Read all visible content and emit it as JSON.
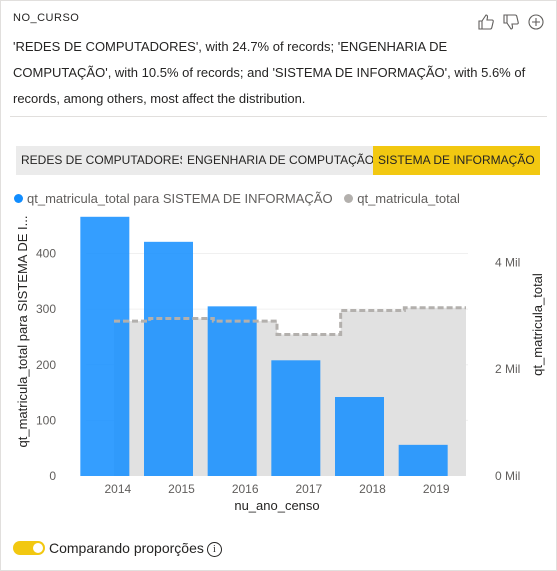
{
  "header": {
    "label": "NO_CURSO"
  },
  "icons": {
    "like": "thumbs-up-icon",
    "dislike": "thumbs-down-icon",
    "add": "plus-circle-icon"
  },
  "summary": {
    "text": "'REDES DE COMPUTADORES', with 24.7% of records; 'ENGENHARIA DE COMPUTAÇÃO', with 10.5% of records; and 'SISTEMA DE INFORMAÇÃO', with 5.6% of records, among others, most affect the distribution."
  },
  "filters": {
    "items": [
      {
        "label": "REDES DE COMPUTADORES",
        "active": false
      },
      {
        "label": "ENGENHARIA DE COMPUTAÇÃO",
        "active": false
      },
      {
        "label": "SISTEMA DE INFORMAÇÃO",
        "active": true
      }
    ]
  },
  "colors": {
    "primary": "#118dff",
    "primary_light": "#5a9ee2",
    "secondary": "#b3b0ad",
    "area": "#e1e1e1",
    "accent": "#f2c811"
  },
  "chart_data": {
    "type": "bar",
    "categories": [
      "2014",
      "2015",
      "2016",
      "2017",
      "2018",
      "2019"
    ],
    "series": [
      {
        "name": "qt_matricula_total para SISTEMA DE INFORMAÇÃO",
        "axis": "left",
        "values": [
          466,
          421,
          305,
          208,
          142,
          56
        ]
      },
      {
        "name": "qt_matricula_total",
        "axis": "right",
        "type": "step-area",
        "values": [
          2900,
          2950,
          2900,
          2650,
          3100,
          3150
        ]
      }
    ],
    "xlabel": "nu_ano_censo",
    "ylabel": "qt_matricula_total para SISTEMA DE I...",
    "y2label": "qt_matricula_total",
    "ylim": [
      0,
      480
    ],
    "yticks": [
      0,
      100,
      200,
      300,
      400
    ],
    "ytick_labels": [
      "0",
      "100",
      "200",
      "300",
      "400"
    ],
    "y2lim": [
      0,
      5000
    ],
    "y2ticks": [
      0,
      2000,
      4000
    ],
    "y2tick_labels": [
      "0 Mil",
      "2 Mil",
      "4 Mil"
    ],
    "legend": "top-left",
    "grid": true
  },
  "toggle": {
    "label": "Comparando proporções",
    "on": true,
    "info_icon": "info-icon"
  }
}
